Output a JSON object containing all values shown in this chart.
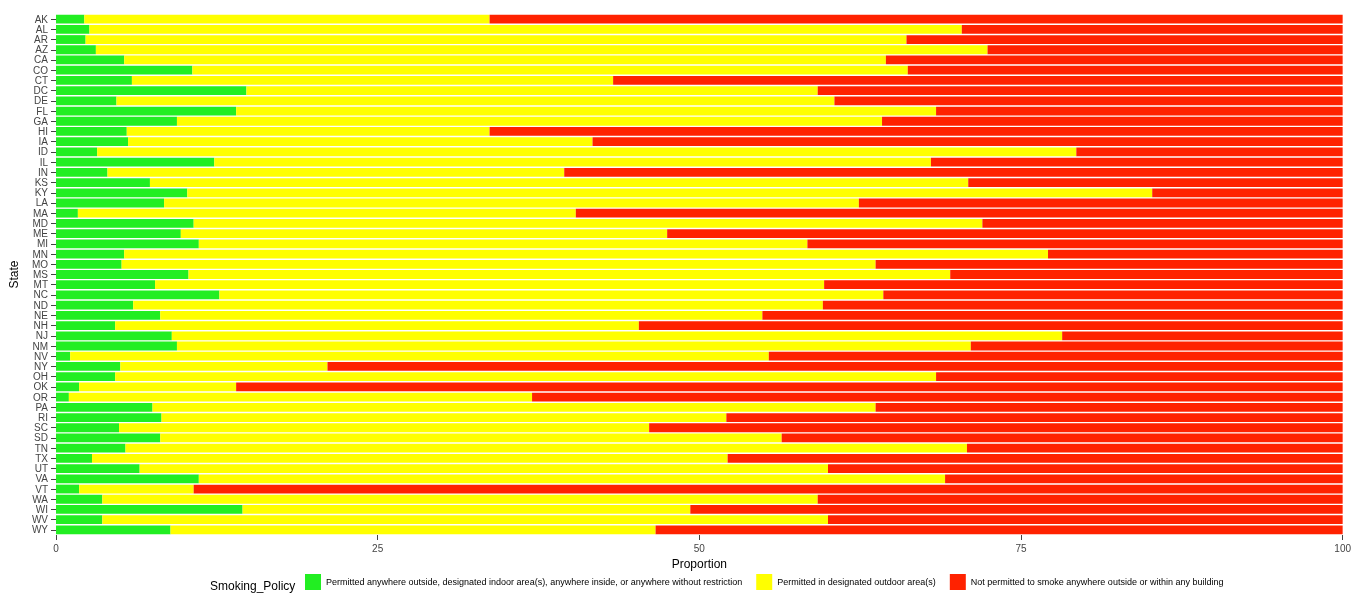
{
  "chart_data": {
    "type": "bar",
    "orientation": "horizontal",
    "stacked": true,
    "xlabel": "Proportion",
    "ylabel": "State",
    "legend_title": "Smoking_Policy",
    "legend": "bottom",
    "grid": false,
    "categories": [
      "AK",
      "AL",
      "AR",
      "AZ",
      "CA",
      "CO",
      "CT",
      "DC",
      "DE",
      "FL",
      "GA",
      "HI",
      "IA",
      "ID",
      "IL",
      "IN",
      "KS",
      "KY",
      "LA",
      "MA",
      "MD",
      "ME",
      "MI",
      "MN",
      "MO",
      "MS",
      "MT",
      "NC",
      "ND",
      "NE",
      "NH",
      "NJ",
      "NM",
      "NV",
      "NY",
      "OH",
      "OK",
      "OR",
      "PA",
      "RI",
      "SC",
      "SD",
      "TN",
      "TX",
      "UT",
      "VA",
      "VT",
      "WA",
      "WI",
      "WV",
      "WY"
    ],
    "xlim": [
      0,
      100
    ],
    "xticks": [
      0,
      25,
      50,
      75,
      100
    ],
    "series": [
      {
        "name": "Permitted anywhere outside, designated indoor area(s), anywhere inside, or anywhere without restriction",
        "color": "#22ee22",
        "values": [
          2.2,
          2.6,
          2.3,
          3.1,
          5.3,
          10.6,
          5.9,
          14.8,
          4.7,
          14.0,
          9.4,
          5.5,
          5.6,
          3.2,
          12.3,
          4.0,
          7.3,
          10.2,
          8.4,
          1.7,
          10.7,
          9.7,
          11.1,
          5.3,
          5.1,
          10.3,
          7.7,
          12.7,
          6.0,
          8.1,
          4.6,
          9.0,
          9.4,
          1.1,
          5.0,
          4.6,
          1.8,
          1.0,
          7.5,
          8.2,
          4.9,
          8.1,
          5.4,
          2.8,
          6.5,
          11.1,
          1.8,
          3.6,
          14.5,
          3.6,
          8.9
        ]
      },
      {
        "name": "Permitted in designated outdoor area(s)",
        "color": "#ffff00",
        "values": [
          31.5,
          67.8,
          63.8,
          69.3,
          59.2,
          55.6,
          37.4,
          44.4,
          55.8,
          54.4,
          54.8,
          28.2,
          36.1,
          76.1,
          55.7,
          35.5,
          63.6,
          75.0,
          54.0,
          38.7,
          61.3,
          37.8,
          47.3,
          71.8,
          58.6,
          59.2,
          52.0,
          51.6,
          53.6,
          46.8,
          40.7,
          69.2,
          61.7,
          54.3,
          16.1,
          63.8,
          12.2,
          36.0,
          56.2,
          43.9,
          41.2,
          48.3,
          65.4,
          49.4,
          53.5,
          58.0,
          8.9,
          55.6,
          34.8,
          56.4,
          37.7
        ]
      },
      {
        "name": "Not permitted to smoke anywhere outside or within any building",
        "color": "#ff2200",
        "values": [
          66.3,
          29.6,
          33.9,
          27.6,
          35.5,
          33.8,
          56.7,
          40.8,
          39.5,
          31.6,
          35.8,
          66.3,
          58.3,
          20.7,
          32.0,
          60.5,
          29.1,
          14.8,
          37.6,
          59.6,
          28.0,
          52.5,
          41.6,
          22.9,
          36.3,
          30.5,
          40.3,
          35.7,
          40.4,
          45.1,
          54.7,
          21.8,
          28.9,
          44.6,
          78.9,
          31.6,
          86.0,
          63.0,
          36.3,
          47.9,
          53.9,
          43.6,
          29.2,
          47.8,
          40.0,
          30.9,
          89.3,
          40.8,
          50.7,
          40.0,
          53.4
        ]
      }
    ]
  }
}
